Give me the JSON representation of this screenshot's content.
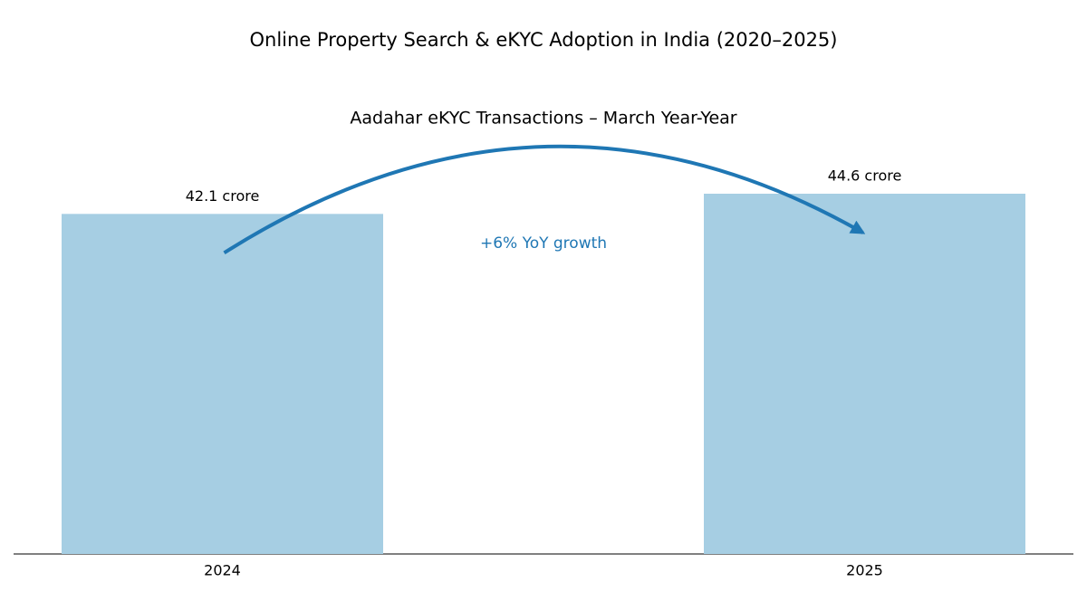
{
  "chart_data": {
    "type": "bar",
    "title": "Online Property Search & eKYC Adoption in India (2020–2025)",
    "subtitle": "Aadahar eKYC Transactions – March Year-Year",
    "categories": [
      "2024",
      "2025"
    ],
    "values": [
      42.1,
      44.6
    ],
    "value_labels": [
      "42.1 crore",
      "44.6 crore"
    ],
    "color": "#a6cee3",
    "annotation": "+6% YoY growth",
    "annotation_color": "#1f77b4"
  }
}
